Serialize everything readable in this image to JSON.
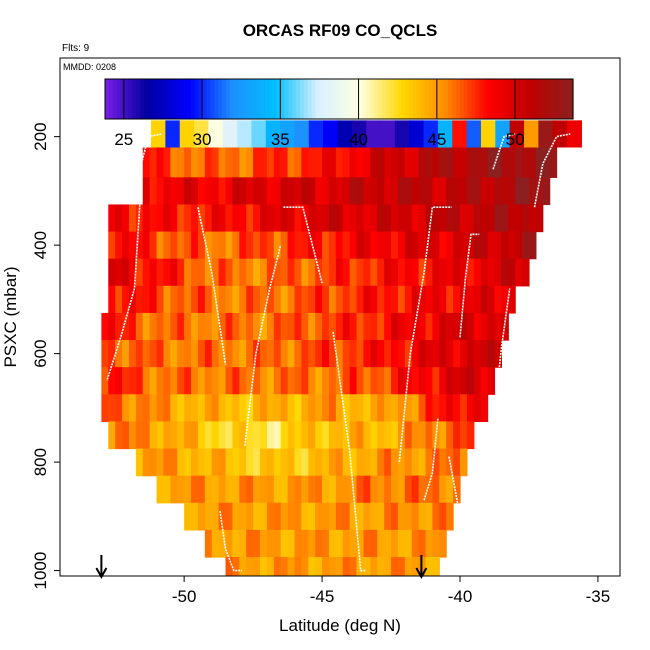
{
  "chart_data": {
    "type": "heatmap",
    "title": "ORCAS RF09 CO_QCLS",
    "flights_label": "Flts: 9",
    "date_label": "MMDD: 0208",
    "xlabel": "Latitude (deg N)",
    "ylabel": "PSXC (mbar)",
    "xlim": [
      -54.5,
      -34.2
    ],
    "ylim": [
      1010,
      55
    ],
    "y_reversed": true,
    "xticks": [
      -50,
      -45,
      -40,
      -35
    ],
    "yticks": [
      200,
      400,
      600,
      800,
      1000
    ],
    "colorbar": {
      "range": [
        23.8,
        53.7
      ],
      "ticks": [
        25,
        30,
        35,
        40,
        45,
        50
      ],
      "colors": [
        "#7a1ee6",
        "#0000a0",
        "#0000ff",
        "#1e90ff",
        "#00bfff",
        "#d8f0ff",
        "#ffffe0",
        "#ffd700",
        "#ff8c00",
        "#ff0000",
        "#c00000",
        "#8b2020"
      ]
    },
    "grid": false,
    "arrows_at_latitude": [
      -53.0,
      -41.4
    ],
    "column_extents": [
      {
        "x0": -53.0,
        "x1": -51.2,
        "p0": 690,
        "p1": 320
      },
      {
        "x0": -51.5,
        "x1": -46.5,
        "p0": 1010,
        "p1": 175
      },
      {
        "x0": -46.5,
        "x1": -41.0,
        "p0": 1010,
        "p1": 175
      },
      {
        "x0": -41.0,
        "x1": -38.0,
        "p0": 1010,
        "p1": 175
      },
      {
        "x0": -38.0,
        "x1": -35.5,
        "p0": 720,
        "p1": 175
      }
    ],
    "profile_field": [
      {
        "p": 190,
        "values": [
          44,
          40,
          34,
          32,
          29,
          27,
          37,
          48
        ]
      },
      {
        "p": 250,
        "values": [
          51,
          47,
          46,
          47,
          48,
          50,
          52,
          53
        ]
      },
      {
        "p": 300,
        "values": [
          50,
          49,
          49,
          50,
          50,
          51,
          51,
          53
        ]
      },
      {
        "p": 350,
        "values": [
          49,
          48,
          48,
          49,
          50,
          50,
          51,
          52
        ]
      },
      {
        "p": 400,
        "values": [
          49,
          47,
          46,
          47,
          48,
          49,
          50,
          52
        ]
      },
      {
        "p": 450,
        "values": [
          50,
          48,
          46,
          46,
          47,
          48,
          49,
          51
        ]
      },
      {
        "p": 500,
        "values": [
          49,
          47,
          46,
          46,
          47,
          48,
          49,
          50
        ]
      },
      {
        "p": 550,
        "values": [
          48,
          46,
          46,
          46,
          47,
          48,
          50,
          50
        ]
      },
      {
        "p": 600,
        "values": [
          47,
          46,
          46,
          46,
          47,
          48,
          50,
          50
        ]
      },
      {
        "p": 650,
        "values": [
          48,
          46,
          46,
          46,
          46,
          47,
          50,
          50
        ]
      },
      {
        "p": 700,
        "values": [
          47,
          45,
          44,
          44,
          45,
          44,
          49,
          49
        ]
      },
      {
        "p": 750,
        "values": [
          46,
          45,
          43,
          42,
          44,
          44,
          47,
          47
        ]
      },
      {
        "p": 800,
        "values": [
          45,
          45,
          44,
          43,
          44,
          45,
          46,
          46
        ]
      },
      {
        "p": 850,
        "values": [
          45,
          45,
          45,
          45,
          45,
          46,
          46,
          46
        ]
      },
      {
        "p": 900,
        "values": [
          44,
          45,
          45,
          45,
          45,
          45,
          46,
          46
        ]
      },
      {
        "p": 950,
        "values": [
          44,
          44,
          45,
          45,
          45,
          45,
          45,
          45
        ]
      },
      {
        "p": 1000,
        "values": [
          44,
          44,
          45,
          45,
          45,
          45,
          45,
          45
        ]
      }
    ],
    "profile_field_lat_nodes": [
      -53,
      -51,
      -49,
      -47,
      -45,
      -43,
      -40,
      -37
    ],
    "flight_tracks": [
      [
        [
          -52.0,
          200
        ],
        [
          -51.6,
          320
        ],
        [
          -51.8,
          480
        ],
        [
          -52.3,
          570
        ],
        [
          -52.8,
          650
        ]
      ],
      [
        [
          -49.5,
          330
        ],
        [
          -49.0,
          450
        ],
        [
          -48.5,
          620
        ]
      ],
      [
        [
          -48.7,
          890
        ],
        [
          -48.5,
          960
        ],
        [
          -48.2,
          1000
        ],
        [
          -47.9,
          1000
        ]
      ],
      [
        [
          -47.8,
          770
        ],
        [
          -47.4,
          600
        ],
        [
          -46.9,
          480
        ],
        [
          -46.5,
          400
        ]
      ],
      [
        [
          -46.4,
          330
        ],
        [
          -45.7,
          330
        ],
        [
          -45.0,
          470
        ]
      ],
      [
        [
          -44.6,
          560
        ],
        [
          -44.0,
          780
        ],
        [
          -43.6,
          1000
        ],
        [
          -43.4,
          1000
        ]
      ],
      [
        [
          -42.2,
          800
        ],
        [
          -41.8,
          600
        ],
        [
          -41.3,
          450
        ],
        [
          -41.0,
          330
        ],
        [
          -40.3,
          330
        ]
      ],
      [
        [
          -41.3,
          870
        ],
        [
          -41.0,
          820
        ],
        [
          -40.8,
          720
        ]
      ],
      [
        [
          -40.0,
          570
        ],
        [
          -39.8,
          460
        ],
        [
          -39.6,
          380
        ],
        [
          -39.3,
          380
        ]
      ],
      [
        [
          -40.4,
          790
        ],
        [
          -40.0,
          900
        ],
        [
          -39.8,
          1000
        ]
      ],
      [
        [
          -39.3,
          960
        ],
        [
          -38.9,
          780
        ],
        [
          -38.5,
          590
        ],
        [
          -38.2,
          480
        ]
      ],
      [
        [
          -38.4,
          680
        ],
        [
          -38.1,
          600
        ],
        [
          -37.8,
          560
        ]
      ],
      [
        [
          -38.8,
          260
        ],
        [
          -38.4,
          200
        ],
        [
          -38.0,
          195
        ]
      ],
      [
        [
          -37.3,
          330
        ],
        [
          -37.0,
          250
        ],
        [
          -36.5,
          200
        ],
        [
          -36.0,
          195
        ]
      ],
      [
        [
          -51.6,
          260
        ],
        [
          -51.3,
          200
        ],
        [
          -50.8,
          195
        ]
      ]
    ],
    "top_strip": {
      "p0": 170,
      "p1": 220,
      "values": [
        43,
        30,
        43,
        42,
        40,
        38,
        37,
        36,
        34,
        33,
        32,
        30,
        29,
        27,
        26,
        25,
        25,
        26,
        28,
        30,
        34,
        48,
        31,
        43,
        33,
        51,
        45,
        53,
        51,
        49
      ]
    },
    "top_strip_lat_range": [
      -51.2,
      -35.6
    ]
  }
}
